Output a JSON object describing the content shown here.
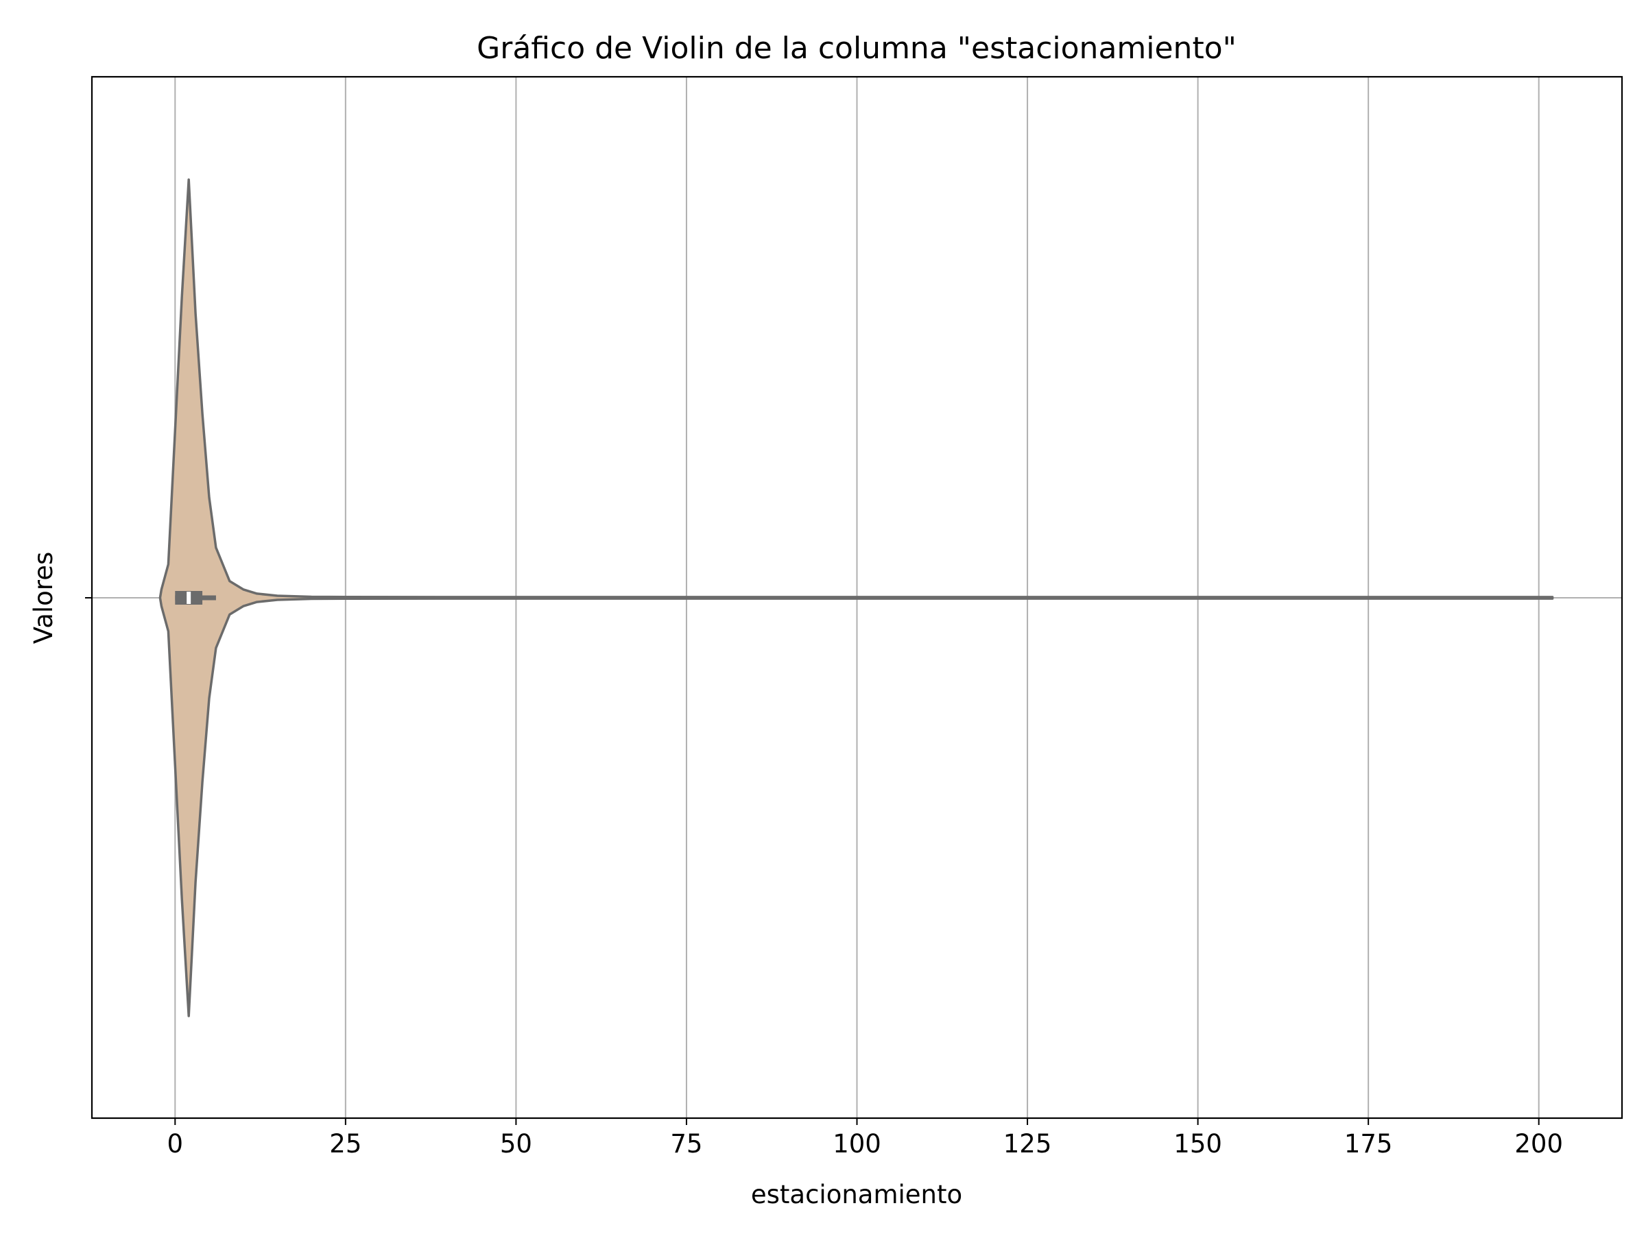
{
  "chart_data": {
    "type": "violin",
    "title": "Gráfico de Violin de la columna \"estacionamiento\"",
    "xlabel": "estacionamiento",
    "ylabel": "Valores",
    "orientation": "horizontal",
    "xlim": [
      -12.2,
      212.2
    ],
    "xticks": [
      0,
      25,
      50,
      75,
      100,
      125,
      150,
      175,
      200
    ],
    "grid": true,
    "fill_color": "#d9bea3",
    "edge_color": "#6b6b6b",
    "grid_color": "#b0b0b0",
    "violin": {
      "data_min": 0,
      "data_max": 202,
      "q1": 0,
      "median": 2,
      "q3": 4,
      "whisker_low": 0,
      "whisker_high": 6,
      "density": [
        [
          -2.2,
          0.0
        ],
        [
          -2.0,
          0.02
        ],
        [
          -1.0,
          0.08
        ],
        [
          0.0,
          0.4
        ],
        [
          1.0,
          0.72
        ],
        [
          2.0,
          1.0
        ],
        [
          3.0,
          0.68
        ],
        [
          4.0,
          0.44
        ],
        [
          5.0,
          0.24
        ],
        [
          6.0,
          0.12
        ],
        [
          8.0,
          0.04
        ],
        [
          10.0,
          0.02
        ],
        [
          12.0,
          0.01
        ],
        [
          15.0,
          0.005
        ],
        [
          20.0,
          0.0025
        ],
        [
          25.0,
          0.002
        ],
        [
          50.0,
          0.0018
        ],
        [
          100.0,
          0.0018
        ],
        [
          150.0,
          0.0018
        ],
        [
          202.0,
          0.0018
        ]
      ]
    }
  }
}
